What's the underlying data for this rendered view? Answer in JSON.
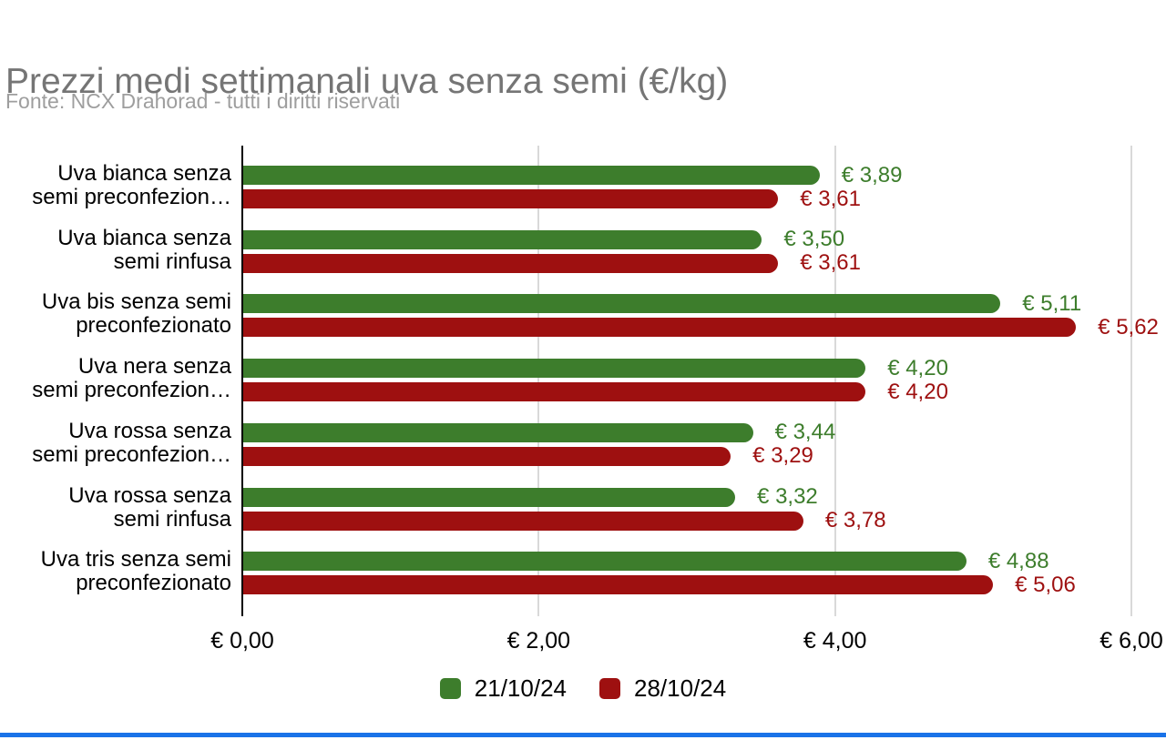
{
  "chart_data": {
    "type": "bar",
    "orientation": "horizontal",
    "title": "Prezzi medi settimanali uva senza semi (€/kg)",
    "subtitle": "Fonte: NCX Drahorad - tutti i diritti riservati",
    "categories": [
      "Uva bianca senza\nsemi preconfezion…",
      "Uva bianca senza\nsemi rinfusa",
      "Uva bis senza semi\npreconfezionato",
      "Uva nera senza\nsemi preconfezion…",
      "Uva rossa senza\nsemi preconfezion…",
      "Uva rossa senza\nsemi rinfusa",
      "Uva tris senza semi\npreconfezionato"
    ],
    "series": [
      {
        "name": "21/10/24",
        "color": "#3d7d2c",
        "values": [
          3.89,
          3.5,
          5.11,
          4.2,
          3.44,
          3.32,
          4.88
        ],
        "labels": [
          "€ 3,89",
          "€ 3,50",
          "€ 5,11",
          "€ 4,20",
          "€ 3,44",
          "€ 3,32",
          "€ 4,88"
        ]
      },
      {
        "name": "28/10/24",
        "color": "#9e1010",
        "values": [
          3.61,
          3.61,
          5.62,
          4.2,
          3.29,
          3.78,
          5.06
        ],
        "labels": [
          "€ 3,61",
          "€ 3,61",
          "€ 5,62",
          "€ 4,20",
          "€ 3,29",
          "€ 3,78",
          "€ 5,06"
        ]
      }
    ],
    "x_axis": {
      "min": 0,
      "max": 6,
      "ticks": [
        {
          "label": "€ 0,00",
          "value": 0
        },
        {
          "label": "€ 2,00",
          "value": 2
        },
        {
          "label": "€ 4,00",
          "value": 4
        },
        {
          "label": "€ 6,00",
          "value": 6
        }
      ],
      "grid": true
    },
    "legend": {
      "position": "bottom",
      "items": [
        "21/10/24",
        "28/10/24"
      ]
    },
    "colors": {
      "title": "#757575",
      "subtitle": "#9e9e9e",
      "gridline": "#d9d9d9",
      "axis": "#000000",
      "bottom_rule": "#1a73e8"
    }
  }
}
